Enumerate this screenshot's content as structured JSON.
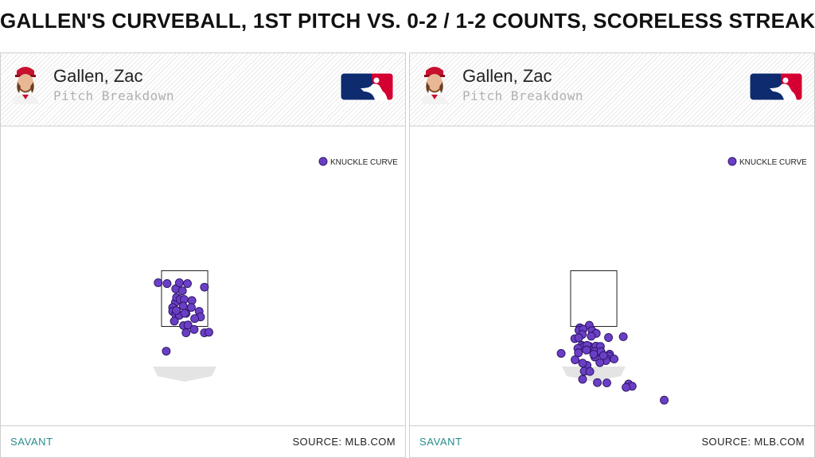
{
  "title": "GALLEN'S CURVEBALL, 1ST PITCH VS. 0-2 / 1-2 COUNTS, SCORELESS STREAK",
  "panels": [
    {
      "player_name": "Gallen, Zac",
      "subtitle": "Pitch Breakdown",
      "footer_left": "SAVANT",
      "footer_right": "SOURCE: MLB.COM"
    },
    {
      "player_name": "Gallen, Zac",
      "subtitle": "Pitch Breakdown",
      "footer_left": "SAVANT",
      "footer_right": "SOURCE: MLB.COM"
    }
  ],
  "icons": {
    "avatar": "player-headshot-icon",
    "logo": "mlb-logo-icon"
  },
  "colors": {
    "pitch": "#6a3fc5",
    "pitch_stroke": "#2a1260",
    "mlb_blue": "#0d2b6e",
    "mlb_red": "#d50032",
    "savant": "#2a8a8a"
  },
  "chart_data": [
    {
      "type": "scatter",
      "legend": [
        "KNUCKLE CURVE"
      ],
      "legend_position": "top-right",
      "x_units": "feet from center of plate (catcher view)",
      "y_units": "feet above ground",
      "strike_zone": {
        "x": [
          -0.83,
          0.83
        ],
        "y": [
          1.5,
          3.5
        ]
      },
      "series": [
        {
          "name": "KNUCKLE CURVE",
          "points": [
            [
              -0.32,
              2.85
            ],
            [
              -0.63,
              3.04
            ],
            [
              -0.95,
              3.07
            ],
            [
              -0.33,
              2.37
            ],
            [
              -0.19,
              3.07
            ],
            [
              0.1,
              3.04
            ],
            [
              -0.08,
              2.78
            ],
            [
              0.71,
              2.91
            ],
            [
              -0.29,
              2.54
            ],
            [
              -0.16,
              2.47
            ],
            [
              -0.02,
              2.47
            ],
            [
              0.26,
              2.43
            ],
            [
              -0.05,
              2.23
            ],
            [
              -0.43,
              2.18
            ],
            [
              -0.43,
              2.04
            ],
            [
              -0.32,
              1.93
            ],
            [
              -0.19,
              1.9
            ],
            [
              0.05,
              1.97
            ],
            [
              0.52,
              2.04
            ],
            [
              0.24,
              2.18
            ],
            [
              0.57,
              1.84
            ],
            [
              0.36,
              1.78
            ],
            [
              -0.37,
              1.69
            ],
            [
              -0.04,
              1.53
            ],
            [
              0.12,
              1.55
            ],
            [
              0.34,
              1.39
            ],
            [
              0.71,
              1.27
            ],
            [
              0.87,
              1.29
            ],
            [
              0.05,
              1.27
            ],
            [
              -0.66,
              0.61
            ],
            [
              -0.3,
              2.07
            ],
            [
              0.0,
              1.97
            ]
          ]
        }
      ]
    },
    {
      "type": "scatter",
      "legend": [
        "KNUCKLE CURVE"
      ],
      "legend_position": "top-right",
      "x_units": "feet from center of plate (catcher view)",
      "y_units": "feet above ground",
      "strike_zone": {
        "x": [
          -0.83,
          0.83
        ],
        "y": [
          1.5,
          3.5
        ]
      },
      "series": [
        {
          "name": "KNUCKLE CURVE",
          "points": [
            [
              -0.5,
              1.45
            ],
            [
              -0.16,
              1.54
            ],
            [
              -0.53,
              1.36
            ],
            [
              -0.38,
              1.4
            ],
            [
              -0.41,
              1.21
            ],
            [
              -0.06,
              1.35
            ],
            [
              0.09,
              1.25
            ],
            [
              -0.09,
              1.15
            ],
            [
              -0.68,
              1.06
            ],
            [
              -0.54,
              1.09
            ],
            [
              0.53,
              1.1
            ],
            [
              1.06,
              1.13
            ],
            [
              -0.43,
              0.82
            ],
            [
              -0.33,
              0.79
            ],
            [
              -0.15,
              0.78
            ],
            [
              0.08,
              0.79
            ],
            [
              0.24,
              0.78
            ],
            [
              -0.57,
              0.71
            ],
            [
              -0.55,
              0.55
            ],
            [
              -0.24,
              0.82
            ],
            [
              0.03,
              0.6
            ],
            [
              0.26,
              0.59
            ],
            [
              0.57,
              0.5
            ],
            [
              0.54,
              0.43
            ],
            [
              0.45,
              0.35
            ],
            [
              0.44,
              0.27
            ],
            [
              0.73,
              0.33
            ],
            [
              -1.17,
              0.53
            ],
            [
              -0.67,
              0.3
            ],
            [
              0.22,
              0.2
            ],
            [
              -0.24,
              0.1
            ],
            [
              -0.34,
              -0.11
            ],
            [
              -0.4,
              0.18
            ],
            [
              0.04,
              0.4
            ],
            [
              0.35,
              0.45
            ],
            [
              -0.14,
              -0.12
            ],
            [
              -0.4,
              -0.4
            ],
            [
              0.13,
              -0.52
            ],
            [
              0.47,
              -0.53
            ],
            [
              1.25,
              -0.57
            ],
            [
              1.38,
              -0.65
            ],
            [
              1.16,
              -0.69
            ],
            [
              2.53,
              -1.15
            ],
            [
              -0.26,
              0.65
            ],
            [
              0.0,
              0.5
            ]
          ]
        }
      ]
    }
  ]
}
